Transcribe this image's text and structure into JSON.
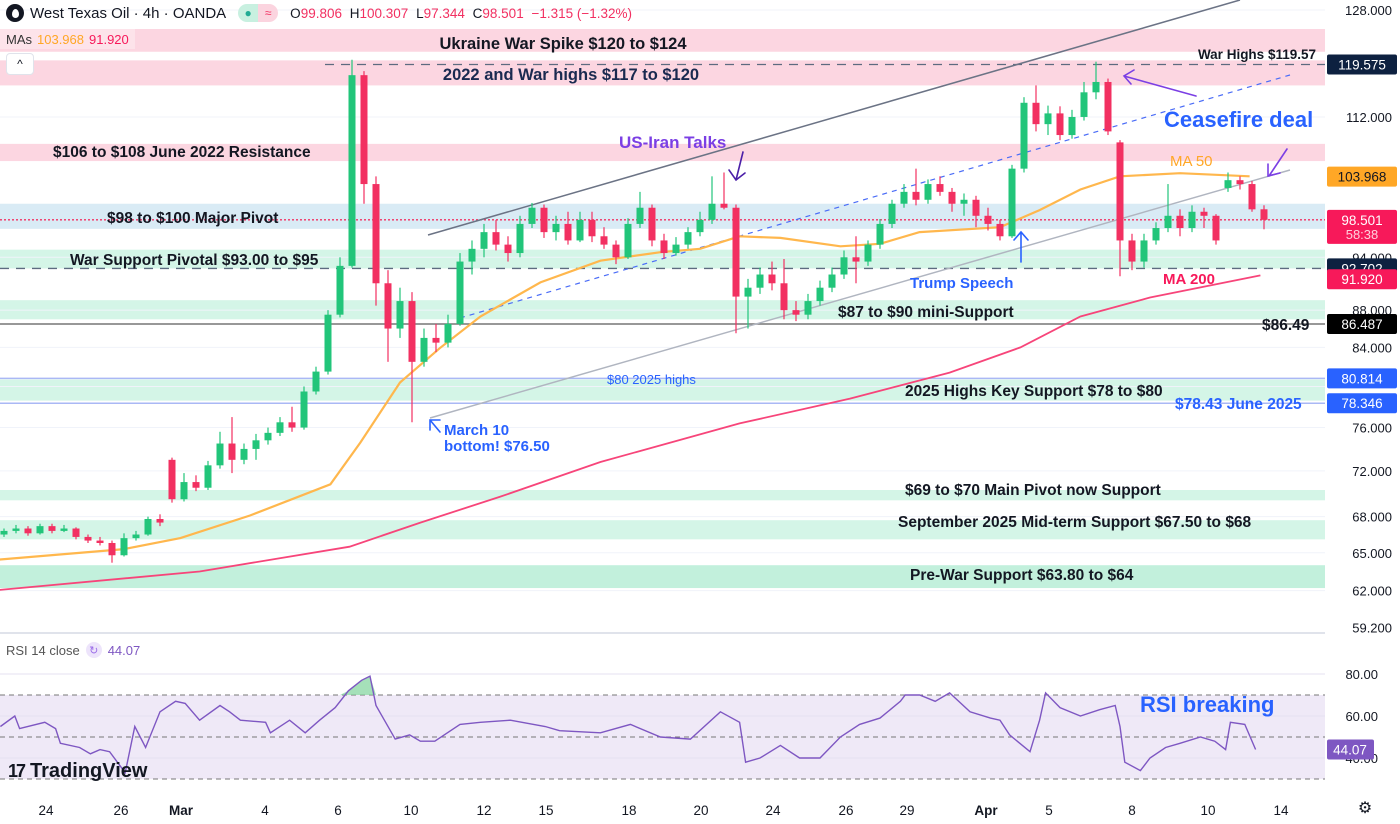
{
  "header": {
    "symbol": "West Texas Oil · 4h · OANDA",
    "open_label": "O",
    "open": "99.806",
    "high_label": "H",
    "high": "100.307",
    "low_label": "L",
    "low": "97.344",
    "close_label": "C",
    "close": "98.501",
    "change": "−1.315 (−1.32%)",
    "mas_label": "MAs",
    "ma50_value": "103.968",
    "ma200_value": "91.920",
    "collapse_label": "^"
  },
  "rsi_legend": {
    "label": "RSI 14 close",
    "value": "44.07"
  },
  "branding": {
    "logo_mark": "17",
    "name": "TradingView"
  },
  "colors": {
    "up": "#22c57a",
    "down": "#f23061",
    "ma50": "#ffb74d",
    "ma200": "#f7457a",
    "rsi": "#7e57c2",
    "navy": "#0d2140",
    "blue": "#2962ff",
    "purple": "#7b3fe4",
    "pink_zone": "#fcd6e1",
    "green_zone": "#d4f5e7",
    "blue_zone": "#d9ebf5"
  },
  "price_axis": {
    "scale": "log",
    "ticks": [
      "128.000",
      "112.000",
      "94.000",
      "88.000",
      "84.000",
      "76.000",
      "72.000",
      "68.000",
      "65.000",
      "62.000",
      "59.200"
    ],
    "badges": [
      {
        "value": "119.575",
        "color": "#0d2140"
      },
      {
        "value": "103.968",
        "color": "#ffa726"
      },
      {
        "value": "98.501",
        "sub": "58:38",
        "color": "#f7195a"
      },
      {
        "value": "92.702",
        "color": "#0d2140"
      },
      {
        "value": "91.920",
        "color": "#f7195a"
      },
      {
        "value": "86.487",
        "color": "#000000"
      },
      {
        "value": "80.814",
        "color": "#2962ff"
      },
      {
        "value": "78.346",
        "color": "#2962ff"
      }
    ]
  },
  "rsi_axis": {
    "ticks": [
      "80.00",
      "60.00",
      "40.00"
    ],
    "badge": "44.07",
    "upper_band": 70,
    "middle": 50,
    "lower_band": 30
  },
  "time_axis": {
    "ticks": [
      "24",
      "26",
      "Mar",
      "4",
      "6",
      "10",
      "12",
      "15",
      "18",
      "20",
      "24",
      "26",
      "29",
      "Apr",
      "5",
      "8",
      "10",
      "14"
    ]
  },
  "zones": [
    {
      "from": 121.5,
      "to": 125.0,
      "type": "pink"
    },
    {
      "from": 116.5,
      "to": 120.2,
      "type": "pink"
    },
    {
      "from": 106.0,
      "to": 108.3,
      "type": "pink"
    },
    {
      "from": 97.4,
      "to": 100.5,
      "type": "blue"
    },
    {
      "from": 92.7,
      "to": 94.9,
      "type": "green"
    },
    {
      "from": 87.0,
      "to": 89.1,
      "type": "green"
    },
    {
      "from": 78.6,
      "to": 80.7,
      "type": "green"
    },
    {
      "from": 69.4,
      "to": 70.3,
      "type": "green"
    },
    {
      "from": 66.1,
      "to": 67.7,
      "type": "green"
    },
    {
      "from": 62.2,
      "to": 64.0,
      "type": "green2"
    }
  ],
  "levels": [
    {
      "price": 119.575,
      "style": "dashed",
      "color": "#5d6b80"
    },
    {
      "price": 92.702,
      "style": "dashed",
      "color": "#5d6b80"
    },
    {
      "price": 86.487,
      "style": "solid",
      "color": "#777777"
    },
    {
      "price": 80.814,
      "style": "solid",
      "color": "#aab8f5"
    },
    {
      "price": 78.346,
      "style": "solid",
      "color": "#aab8f5"
    },
    {
      "price": 98.501,
      "style": "dotted",
      "color": "#f23061"
    }
  ],
  "annotations": {
    "ukraine_spike": "Ukraine War Spike $120 to $124",
    "war_highs_zone": "2022 and War highs $117 to $120",
    "war_highs": "War Highs $119.57",
    "resistance_2022": "$106 to $108 June 2022 Resistance",
    "us_iran": "US-Iran Talks",
    "ceasefire": "Ceasefire deal",
    "ma50": "MA 50",
    "major_pivot": "$98 to $100 Major Pivot",
    "war_support": "War Support Pivotal $93.00 to $95",
    "trump": "Trump Speech",
    "ma200": "MA 200",
    "mini_support": "$87 to $90 mini-Support",
    "level_8649": "$86.49",
    "highs_2025": "$80 2025 highs",
    "key_support": "2025 Highs Key Support $78 to $80",
    "june_2025": "$78.43 June 2025",
    "march10_a": "March 10",
    "march10_b": "bottom! $76.50",
    "main_pivot": "$69 to $70 Main Pivot now Support",
    "sept_support": "September 2025 Mid-term Support $67.50 to $68",
    "prewar": "Pre-War Support $63.80 to $64",
    "rsi_breaking": "RSI breaking"
  },
  "chart_data": {
    "type": "candlestick",
    "title": "West Texas Oil · 4h · OANDA",
    "ohlc": [
      [
        66.3,
        66.8,
        66.0,
        66.5
      ],
      [
        66.5,
        67.0,
        66.3,
        66.8
      ],
      [
        66.8,
        67.3,
        66.6,
        67.0
      ],
      [
        67.0,
        67.2,
        66.4,
        66.6
      ],
      [
        66.6,
        67.4,
        66.5,
        67.2
      ],
      [
        67.2,
        67.4,
        66.6,
        66.8
      ],
      [
        66.8,
        67.3,
        66.7,
        67.0
      ],
      [
        67.0,
        67.1,
        66.1,
        66.3
      ],
      [
        66.3,
        66.5,
        65.8,
        66.0
      ],
      [
        66.0,
        66.3,
        65.6,
        65.8
      ],
      [
        65.8,
        66.0,
        64.2,
        64.8
      ],
      [
        64.8,
        66.6,
        64.7,
        66.2
      ],
      [
        66.2,
        66.8,
        66.0,
        66.5
      ],
      [
        66.5,
        68.0,
        66.4,
        67.8
      ],
      [
        67.8,
        68.2,
        67.2,
        67.5
      ],
      [
        73.0,
        73.2,
        69.2,
        69.5
      ],
      [
        69.5,
        71.8,
        69.3,
        71.0
      ],
      [
        71.0,
        71.6,
        70.2,
        70.5
      ],
      [
        70.5,
        72.9,
        70.3,
        72.5
      ],
      [
        72.5,
        75.6,
        72.2,
        74.5
      ],
      [
        74.5,
        77.0,
        71.8,
        73.0
      ],
      [
        73.0,
        74.5,
        72.6,
        74.0
      ],
      [
        74.0,
        75.4,
        73.0,
        74.8
      ],
      [
        74.8,
        76.0,
        74.4,
        75.5
      ],
      [
        75.5,
        77.0,
        75.2,
        76.5
      ],
      [
        76.5,
        78.0,
        75.6,
        76.0
      ],
      [
        76.0,
        80.0,
        75.8,
        79.5
      ],
      [
        79.5,
        82.0,
        79.2,
        81.5
      ],
      [
        81.5,
        88.0,
        81.2,
        87.5
      ],
      [
        87.5,
        94.0,
        87.2,
        93.0
      ],
      [
        93.0,
        120.3,
        92.8,
        118.0
      ],
      [
        118.0,
        118.6,
        100.5,
        103.0
      ],
      [
        103.0,
        104.0,
        88.5,
        91.0
      ],
      [
        91.0,
        92.5,
        82.5,
        86.0
      ],
      [
        86.0,
        90.5,
        85.0,
        89.0
      ],
      [
        89.0,
        90.0,
        76.5,
        82.5
      ],
      [
        82.5,
        86.0,
        82.0,
        85.0
      ],
      [
        85.0,
        86.5,
        83.5,
        84.5
      ],
      [
        84.5,
        87.5,
        84.0,
        86.5
      ],
      [
        86.5,
        94.5,
        86.3,
        93.5
      ],
      [
        93.5,
        96.0,
        92.0,
        95.0
      ],
      [
        95.0,
        98.0,
        94.0,
        97.0
      ],
      [
        97.0,
        98.5,
        94.8,
        95.5
      ],
      [
        95.5,
        96.5,
        93.5,
        94.5
      ],
      [
        94.5,
        99.0,
        94.0,
        98.0
      ],
      [
        98.0,
        100.6,
        97.5,
        100.0
      ],
      [
        100.0,
        100.4,
        96.3,
        97.0
      ],
      [
        97.0,
        99.0,
        96.0,
        98.0
      ],
      [
        98.0,
        99.5,
        95.5,
        96.0
      ],
      [
        96.0,
        99.5,
        95.8,
        98.5
      ],
      [
        98.5,
        99.5,
        95.8,
        96.5
      ],
      [
        96.5,
        97.6,
        95.0,
        95.5
      ],
      [
        95.5,
        96.0,
        93.2,
        94.0
      ],
      [
        94.0,
        98.7,
        93.8,
        98.0
      ],
      [
        98.0,
        102.0,
        97.5,
        100.0
      ],
      [
        100.0,
        100.4,
        95.3,
        96.0
      ],
      [
        96.0,
        96.8,
        93.8,
        94.5
      ],
      [
        94.5,
        96.4,
        94.2,
        95.5
      ],
      [
        95.5,
        97.6,
        95.0,
        97.0
      ],
      [
        97.0,
        99.5,
        96.5,
        98.5
      ],
      [
        98.5,
        104.0,
        98.0,
        100.5
      ],
      [
        100.5,
        104.5,
        99.8,
        100.0
      ],
      [
        100.0,
        100.4,
        85.5,
        89.5
      ],
      [
        89.5,
        91.5,
        86.0,
        90.5
      ],
      [
        90.5,
        92.8,
        89.8,
        92.0
      ],
      [
        92.0,
        93.5,
        90.2,
        91.0
      ],
      [
        91.0,
        93.8,
        87.0,
        88.0
      ],
      [
        88.0,
        89.0,
        86.8,
        87.5
      ],
      [
        87.5,
        89.8,
        87.0,
        89.0
      ],
      [
        89.0,
        91.3,
        88.5,
        90.5
      ],
      [
        90.5,
        92.8,
        90.0,
        92.0
      ],
      [
        92.0,
        94.8,
        91.5,
        94.0
      ],
      [
        94.0,
        96.5,
        91.0,
        93.5
      ],
      [
        93.5,
        96.0,
        93.0,
        95.5
      ],
      [
        95.5,
        98.6,
        95.0,
        98.0
      ],
      [
        98.0,
        101.0,
        97.5,
        100.5
      ],
      [
        100.5,
        103.0,
        100.0,
        102.0
      ],
      [
        102.0,
        105.0,
        100.3,
        101.0
      ],
      [
        101.0,
        103.6,
        100.5,
        103.0
      ],
      [
        103.0,
        104.0,
        101.5,
        102.0
      ],
      [
        102.0,
        102.5,
        99.5,
        100.5
      ],
      [
        100.5,
        101.8,
        99.0,
        101.0
      ],
      [
        101.0,
        101.5,
        97.6,
        99.0
      ],
      [
        99.0,
        100.0,
        97.2,
        98.0
      ],
      [
        98.0,
        98.5,
        96.0,
        96.5
      ],
      [
        96.5,
        105.5,
        96.3,
        105.0
      ],
      [
        105.0,
        114.8,
        104.5,
        114.0
      ],
      [
        114.0,
        116.5,
        110.0,
        111.0
      ],
      [
        111.0,
        113.6,
        109.5,
        112.5
      ],
      [
        112.5,
        113.5,
        108.8,
        109.5
      ],
      [
        109.5,
        113.0,
        109.0,
        112.0
      ],
      [
        112.0,
        117.0,
        111.5,
        115.5
      ],
      [
        115.5,
        120.0,
        114.5,
        117.0
      ],
      [
        117.0,
        117.5,
        109.5,
        110.0
      ],
      [
        108.5,
        108.8,
        91.8,
        96.0
      ],
      [
        96.0,
        96.8,
        92.5,
        93.5
      ],
      [
        93.5,
        96.8,
        92.8,
        96.0
      ],
      [
        96.0,
        98.2,
        95.5,
        97.5
      ],
      [
        97.5,
        103.0,
        97.0,
        99.0
      ],
      [
        99.0,
        99.8,
        96.5,
        97.5
      ],
      [
        97.5,
        100.3,
        97.0,
        99.5
      ],
      [
        99.5,
        100.0,
        97.5,
        99.0
      ],
      [
        99.0,
        99.2,
        95.5,
        96.0
      ],
      [
        102.5,
        104.5,
        102.0,
        103.5
      ],
      [
        103.5,
        104.0,
        102.3,
        103.0
      ],
      [
        103.0,
        103.4,
        99.5,
        99.8
      ],
      [
        99.806,
        100.307,
        97.344,
        98.501
      ]
    ],
    "ma50": [
      [
        0,
        64.4
      ],
      [
        11,
        65.3
      ],
      [
        15.7,
        66.2
      ],
      [
        21.5,
        68.1
      ],
      [
        28.2,
        70.8
      ],
      [
        30.7,
        74.6
      ],
      [
        34,
        80.4
      ],
      [
        37.3,
        83.9
      ],
      [
        40.7,
        87.3
      ],
      [
        45.7,
        91.1
      ],
      [
        50.7,
        93.6
      ],
      [
        55.7,
        94.6
      ],
      [
        59,
        95
      ],
      [
        62.3,
        96.5
      ],
      [
        65.7,
        96.3
      ],
      [
        70.7,
        95.3
      ],
      [
        74,
        95.6
      ],
      [
        77.3,
        97
      ],
      [
        84,
        97.6
      ],
      [
        87.3,
        99.7
      ],
      [
        90.7,
        102.3
      ],
      [
        94,
        104
      ],
      [
        99,
        104.4
      ],
      [
        104.8,
        104.0
      ]
    ],
    "ma200": [
      [
        0,
        62
      ],
      [
        17.3,
        63.5
      ],
      [
        29.8,
        65.5
      ],
      [
        35.7,
        67.5
      ],
      [
        42.3,
        69.7
      ],
      [
        50.7,
        72.8
      ],
      [
        62.3,
        76.4
      ],
      [
        71.5,
        78.8
      ],
      [
        79.8,
        81.4
      ],
      [
        85.7,
        84
      ],
      [
        90.7,
        87.3
      ],
      [
        96.5,
        89.4
      ],
      [
        105.7,
        91.9
      ]
    ],
    "rsi": [
      [
        0.7,
        55
      ],
      [
        1.9,
        60
      ],
      [
        2.3,
        54
      ],
      [
        4.4,
        57
      ],
      [
        5.3,
        54
      ],
      [
        5.7,
        47
      ],
      [
        7.3,
        45
      ],
      [
        8.2,
        42
      ],
      [
        9,
        44
      ],
      [
        9.8,
        43
      ],
      [
        11.1,
        33
      ],
      [
        11.9,
        55
      ],
      [
        12.8,
        45
      ],
      [
        14,
        62
      ],
      [
        15.3,
        67
      ],
      [
        16.1,
        66
      ],
      [
        17.3,
        58
      ],
      [
        19,
        65
      ],
      [
        19.8,
        62
      ],
      [
        20.7,
        58
      ],
      [
        22.8,
        57
      ],
      [
        23.2,
        52
      ],
      [
        24.8,
        58
      ],
      [
        26.1,
        52
      ],
      [
        27.3,
        58
      ],
      [
        28.6,
        64
      ],
      [
        29.7,
        72
      ],
      [
        30.8,
        77
      ],
      [
        31.5,
        79
      ],
      [
        32,
        65
      ],
      [
        33.6,
        49
      ],
      [
        34.8,
        51
      ],
      [
        35.7,
        48
      ],
      [
        36.9,
        48
      ],
      [
        39,
        56
      ],
      [
        40.7,
        57
      ],
      [
        43.2,
        58
      ],
      [
        46.1,
        55
      ],
      [
        47.3,
        53
      ],
      [
        50.7,
        52
      ],
      [
        53.2,
        56
      ],
      [
        55.7,
        50
      ],
      [
        58.2,
        49
      ],
      [
        60.7,
        62
      ],
      [
        62.3,
        57
      ],
      [
        62.8,
        38
      ],
      [
        64,
        40
      ],
      [
        65.7,
        46
      ],
      [
        67.3,
        40
      ],
      [
        69,
        40
      ],
      [
        70.7,
        50
      ],
      [
        72.3,
        56
      ],
      [
        74,
        59
      ],
      [
        75.7,
        67
      ],
      [
        76.1,
        70
      ],
      [
        77.3,
        70
      ],
      [
        78.6,
        67
      ],
      [
        79.8,
        71
      ],
      [
        81.5,
        62
      ],
      [
        83.2,
        59
      ],
      [
        84,
        58
      ],
      [
        84.8,
        51
      ],
      [
        86.5,
        43
      ],
      [
        87.3,
        58
      ],
      [
        87.8,
        71
      ],
      [
        89,
        64
      ],
      [
        90.7,
        60
      ],
      [
        92.3,
        63
      ],
      [
        93.6,
        65
      ],
      [
        94,
        55
      ],
      [
        94.4,
        38
      ],
      [
        95.7,
        34
      ],
      [
        96.5,
        40
      ],
      [
        97.8,
        45
      ],
      [
        99,
        47
      ],
      [
        100.7,
        50
      ],
      [
        101.9,
        48
      ],
      [
        102.8,
        44
      ],
      [
        103.2,
        57
      ],
      [
        104.4,
        56
      ],
      [
        105.3,
        44.07
      ]
    ]
  }
}
